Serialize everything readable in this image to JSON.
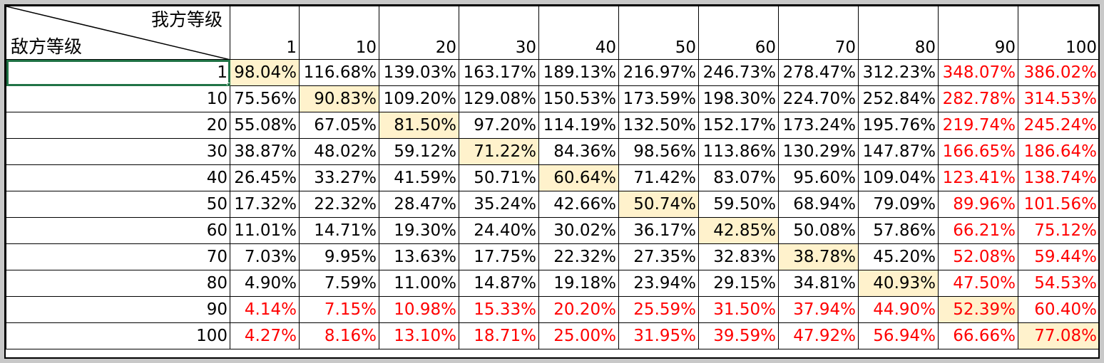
{
  "corner": {
    "col_axis_label": "我方等级",
    "row_axis_label": "敌方等级"
  },
  "col_levels": [
    "1",
    "10",
    "20",
    "30",
    "40",
    "50",
    "60",
    "70",
    "80",
    "90",
    "100"
  ],
  "rows": [
    {
      "level": "1",
      "cells": [
        "98.04%",
        "116.68%",
        "139.03%",
        "163.17%",
        "189.13%",
        "216.97%",
        "246.73%",
        "278.47%",
        "312.23%",
        "348.07%",
        "386.02%"
      ]
    },
    {
      "level": "10",
      "cells": [
        "75.56%",
        "90.83%",
        "109.20%",
        "129.08%",
        "150.53%",
        "173.59%",
        "198.30%",
        "224.70%",
        "252.84%",
        "282.78%",
        "314.53%"
      ]
    },
    {
      "level": "20",
      "cells": [
        "55.08%",
        "67.05%",
        "81.50%",
        "97.20%",
        "114.19%",
        "132.50%",
        "152.17%",
        "173.24%",
        "195.76%",
        "219.74%",
        "245.24%"
      ]
    },
    {
      "level": "30",
      "cells": [
        "38.87%",
        "48.02%",
        "59.12%",
        "71.22%",
        "84.36%",
        "98.56%",
        "113.86%",
        "130.29%",
        "147.87%",
        "166.65%",
        "186.64%"
      ]
    },
    {
      "level": "40",
      "cells": [
        "26.45%",
        "33.27%",
        "41.59%",
        "50.71%",
        "60.64%",
        "71.42%",
        "83.07%",
        "95.60%",
        "109.04%",
        "123.41%",
        "138.74%"
      ]
    },
    {
      "level": "50",
      "cells": [
        "17.32%",
        "22.32%",
        "28.47%",
        "35.24%",
        "42.66%",
        "50.74%",
        "59.50%",
        "68.94%",
        "79.09%",
        "89.96%",
        "101.56%"
      ]
    },
    {
      "level": "60",
      "cells": [
        "11.01%",
        "14.71%",
        "19.30%",
        "24.40%",
        "30.02%",
        "36.17%",
        "42.85%",
        "50.08%",
        "57.86%",
        "66.21%",
        "75.12%"
      ]
    },
    {
      "level": "70",
      "cells": [
        "7.03%",
        "9.95%",
        "13.63%",
        "17.75%",
        "22.32%",
        "27.35%",
        "32.83%",
        "38.78%",
        "45.20%",
        "52.08%",
        "59.44%"
      ]
    },
    {
      "level": "80",
      "cells": [
        "4.90%",
        "7.59%",
        "11.00%",
        "14.87%",
        "19.18%",
        "23.94%",
        "29.15%",
        "34.81%",
        "40.93%",
        "47.50%",
        "54.53%"
      ]
    },
    {
      "level": "90",
      "cells": [
        "4.14%",
        "7.15%",
        "10.98%",
        "15.33%",
        "20.20%",
        "25.59%",
        "31.50%",
        "37.94%",
        "44.90%",
        "52.39%",
        "60.40%"
      ]
    },
    {
      "level": "100",
      "cells": [
        "4.27%",
        "8.16%",
        "13.10%",
        "18.71%",
        "25.00%",
        "31.95%",
        "39.59%",
        "47.92%",
        "56.94%",
        "66.66%",
        "77.08%"
      ]
    }
  ],
  "styles": {
    "highlight_fill": "#fff2cc",
    "warning_text_color": "#ff0000",
    "selection_color": "#217346"
  }
}
